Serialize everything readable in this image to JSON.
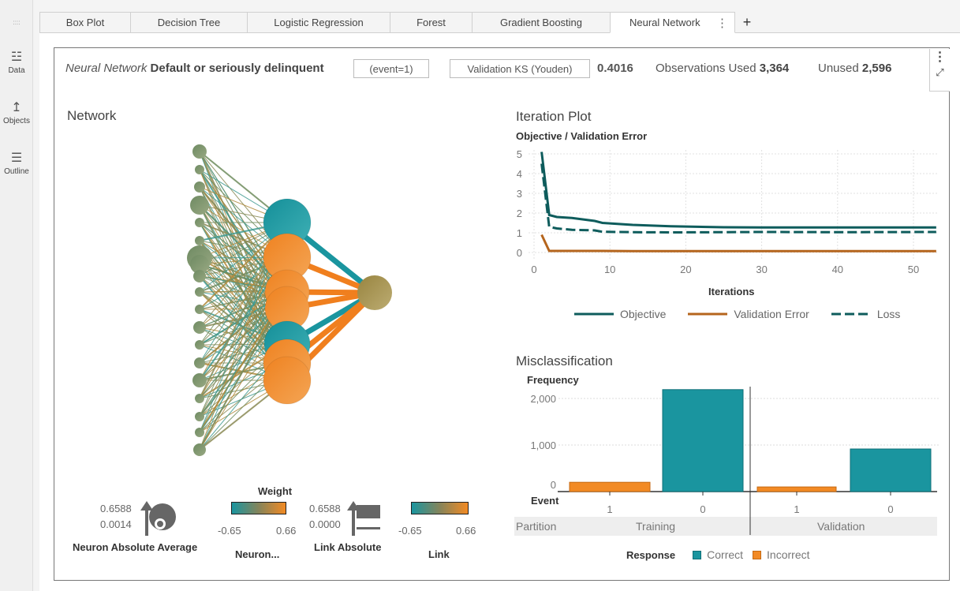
{
  "sidebar": {
    "grip": "::::",
    "items": [
      {
        "label": "Data",
        "icon": "database-icon"
      },
      {
        "label": "Objects",
        "icon": "line-chart-icon"
      },
      {
        "label": "Outline",
        "icon": "list-icon"
      }
    ]
  },
  "tabs": [
    {
      "label": "Box Plot"
    },
    {
      "label": "Decision Tree"
    },
    {
      "label": "Logistic Regression"
    },
    {
      "label": "Forest"
    },
    {
      "label": "Gradient Boosting"
    },
    {
      "label": "Neural Network",
      "active": true
    }
  ],
  "tab_add": "+",
  "tab_menu": "⋮",
  "header": {
    "model": "Neural Network",
    "target": "Default or seriously delinquent",
    "event": "(event=1)",
    "metric": "Validation KS (Youden)",
    "metric_value": "0.4016",
    "obs_used_label": "Observations Used",
    "obs_used": "3,364",
    "unused_label": "Unused",
    "unused": "2,596"
  },
  "network": {
    "title": "Network",
    "legend": {
      "neuron_abs_avg": {
        "max": "0.6588",
        "min": "0.0014",
        "label": "Neuron Absolute Average"
      },
      "weight_title": "Weight",
      "neuron_weight": {
        "min": "-0.65",
        "max": "0.66",
        "label": "Neuron..."
      },
      "link_abs": {
        "max": "0.6588",
        "min": "0.0000",
        "label": "Link Absolute"
      },
      "link_weight": {
        "min": "-0.65",
        "max": "0.66",
        "label": "Link"
      }
    },
    "colors": {
      "negative": "#1a959f",
      "positive": "#f28a24",
      "neutral": "#8a8a55"
    }
  },
  "chart_data": [
    {
      "type": "line",
      "title": "Iteration Plot",
      "ylabel": "Objective / Validation Error",
      "xlabel": "Iterations",
      "xlim": [
        0,
        53
      ],
      "ylim": [
        0,
        5
      ],
      "xticks": [
        "0",
        "10",
        "20",
        "30",
        "40",
        "50"
      ],
      "yticks": [
        "0",
        "1",
        "2",
        "3",
        "4",
        "5"
      ],
      "grid": true,
      "legend": "bottom",
      "x": [
        1,
        2,
        3,
        5,
        8,
        9,
        13,
        18,
        25,
        30,
        40,
        53
      ],
      "series": [
        {
          "name": "Objective",
          "color": "#0e5c5c",
          "dash": false,
          "values": [
            5.1,
            1.9,
            1.8,
            1.75,
            1.6,
            1.5,
            1.4,
            1.33,
            1.28,
            1.27,
            1.27,
            1.27
          ]
        },
        {
          "name": "Validation Error",
          "color": "#b5651d",
          "dash": false,
          "values": [
            0.9,
            0.08,
            0.08,
            0.08,
            0.08,
            0.08,
            0.07,
            0.07,
            0.07,
            0.07,
            0.07,
            0.07
          ]
        },
        {
          "name": "Loss",
          "color": "#0e5c5c",
          "dash": true,
          "values": [
            4.5,
            1.3,
            1.22,
            1.15,
            1.12,
            1.05,
            1.03,
            1.02,
            1.03,
            1.04,
            1.03,
            1.04
          ]
        }
      ]
    },
    {
      "type": "bar",
      "title": "Misclassification",
      "ylabel": "Frequency",
      "xlabel": "Event",
      "ylim": [
        0,
        2300
      ],
      "yticks": [
        "0",
        "1,000",
        "2,000"
      ],
      "partition_label": "Partition",
      "legend_title": "Response",
      "legend": "bottom",
      "groups": [
        {
          "name": "Training",
          "bars": [
            {
              "event": "1",
              "response": "Incorrect",
              "value": 200
            },
            {
              "event": "0",
              "response": "Correct",
              "value": 2190
            }
          ]
        },
        {
          "name": "Validation",
          "bars": [
            {
              "event": "1",
              "response": "Incorrect",
              "value": 100
            },
            {
              "event": "0",
              "response": "Correct",
              "value": 915
            }
          ]
        }
      ],
      "series": [
        {
          "name": "Correct",
          "color": "#1a959f"
        },
        {
          "name": "Incorrect",
          "color": "#f28a24"
        }
      ]
    }
  ]
}
